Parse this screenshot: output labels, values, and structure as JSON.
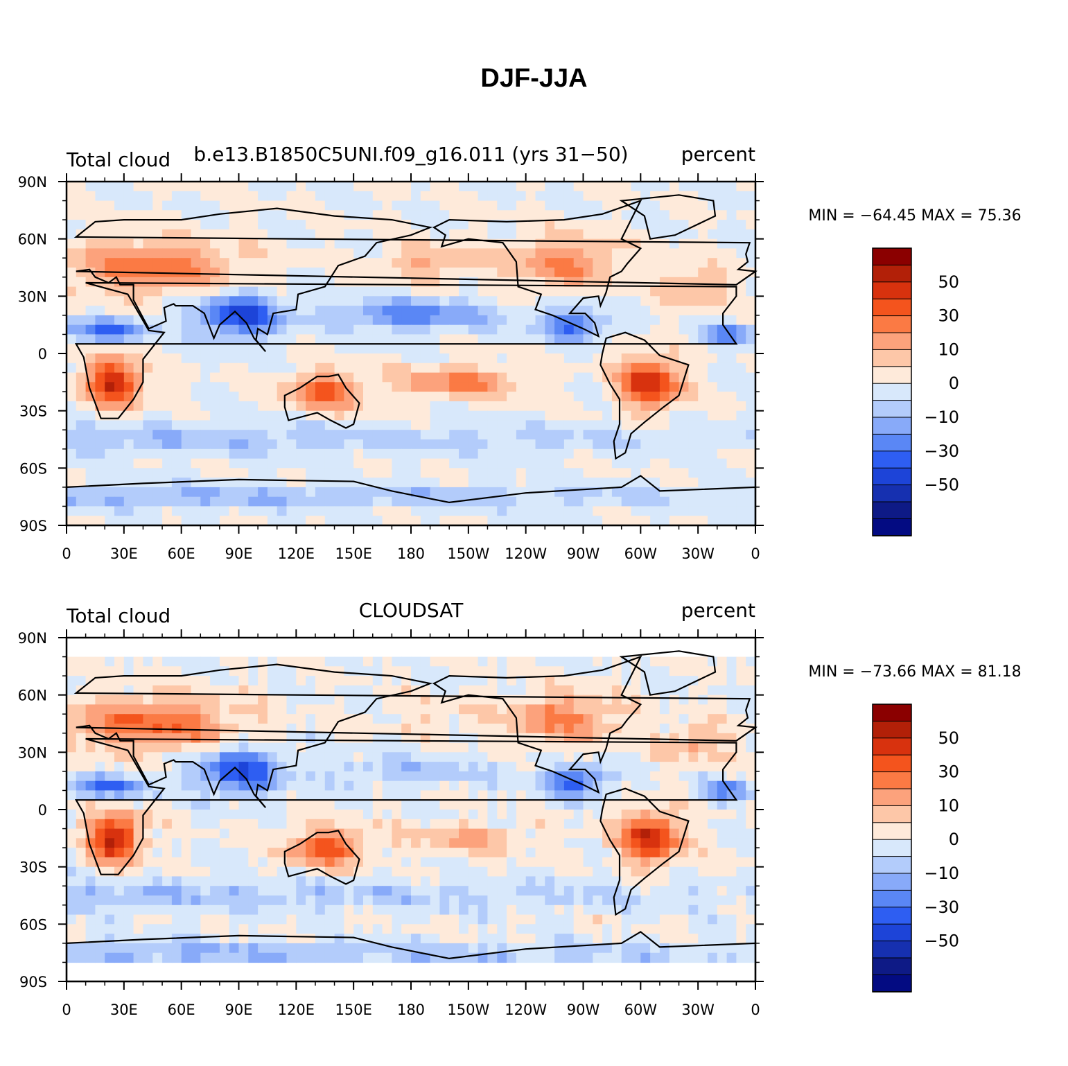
{
  "title": "DJF-JJA",
  "lat_ticks": [
    "90N",
    "60N",
    "30N",
    "0",
    "30S",
    "60S",
    "90S"
  ],
  "lon_ticks": [
    "0",
    "30E",
    "60E",
    "90E",
    "120E",
    "150E",
    "180",
    "150W",
    "120W",
    "90W",
    "60W",
    "30W",
    "0"
  ],
  "colorbar_labels": [
    "50",
    "30",
    "10",
    "0",
    "−10",
    "−30",
    "−50"
  ],
  "colorbar_colors": [
    "#8b0000",
    "#b22008",
    "#d8320e",
    "#f4541d",
    "#fb7a44",
    "#fca27c",
    "#fdc7a8",
    "#feeada",
    "#d8e8fb",
    "#b3ccfb",
    "#88aaf9",
    "#5a87f5",
    "#2e5ef2",
    "#1d44d8",
    "#1630b0",
    "#0e1a86",
    "#030b82"
  ],
  "panels": [
    {
      "left": "Total cloud",
      "center": "b.e13.B1850C5UNI.f09_g16.011 (yrs 31−50)",
      "right": "percent",
      "stats": "MIN = −64.45 MAX =  75.36"
    },
    {
      "left": "Total cloud",
      "center": "CLOUDSAT",
      "right": "percent",
      "stats": "MIN = −73.66 MAX =  81.18"
    }
  ]
}
